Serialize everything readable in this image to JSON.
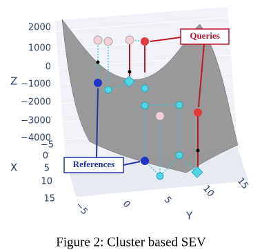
{
  "figure": {
    "z_axis": {
      "label": "Z",
      "ticks": [
        "2000",
        "1000",
        "0",
        "−1000",
        "−2000",
        "−3000",
        "−4000"
      ]
    },
    "x_axis": {
      "label": "X",
      "ticks": [
        "−5",
        "0",
        "5",
        "10",
        "15"
      ]
    },
    "y_axis": {
      "label": "Y",
      "ticks": [
        "−5",
        "0",
        "5",
        "10",
        "15"
      ]
    },
    "annotations": {
      "queries": "Queries",
      "references": "References"
    },
    "caption": "Figure 2: Cluster based SEV"
  }
}
